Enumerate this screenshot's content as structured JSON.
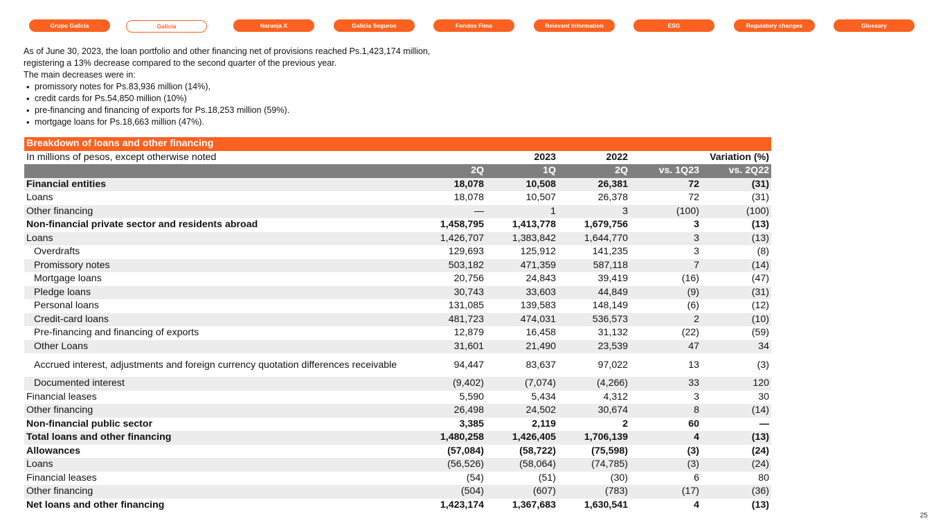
{
  "nav": {
    "items": [
      {
        "label": "Grupo Galicia"
      },
      {
        "label": "Galicia"
      },
      {
        "label": "Naranja X"
      },
      {
        "label": "Galicia Seguros"
      },
      {
        "label": "Fondos Fima"
      },
      {
        "label": "Relevant information"
      },
      {
        "label": "ESG"
      },
      {
        "label": "Regulatory changes"
      },
      {
        "label": "Glossary"
      }
    ],
    "active_index": 1
  },
  "intro": {
    "line1": "As of June 30, 2023, the loan portfolio and other financing net of provisions reached Ps.1,423,174 million,",
    "line2": "registering a 13% decrease compared to the second quarter of the previous year.",
    "line3": "The main decreases were in:",
    "bullets": [
      "promissory notes for Ps.83,936 million (14%),",
      "credit cards for Ps.54,850 million (10%)",
      "pre-financing and financing of exports for Ps.18,253 million (59%).",
      "mortgage loans for Ps.18,663 million (47%)."
    ]
  },
  "table": {
    "title": "Breakdown of loans and other financing",
    "units": "In millions of pesos, except otherwise noted",
    "year_2023": "2023",
    "year_2022": "2022",
    "variation": "Variation (%)",
    "cols": [
      "2Q",
      "1Q",
      "2Q",
      "vs. 1Q23",
      "vs. 2Q22"
    ],
    "rows": [
      {
        "label": "Financial entities",
        "v": [
          "18,078",
          "10,508",
          "26,381",
          "72",
          "(31)"
        ]
      },
      {
        "label": "Loans",
        "v": [
          "18,078",
          "10,507",
          "26,378",
          "72",
          "(31)"
        ]
      },
      {
        "label": "Other financing",
        "v": [
          "—",
          "1",
          "3",
          "(100)",
          "(100)"
        ]
      },
      {
        "label": "Non-financial private sector and residents abroad",
        "v": [
          "1,458,795",
          "1,413,778",
          "1,679,756",
          "3",
          "(13)"
        ]
      },
      {
        "label": "Loans",
        "v": [
          "1,426,707",
          "1,383,842",
          "1,644,770",
          "3",
          "(13)"
        ]
      },
      {
        "label": "Overdrafts",
        "v": [
          "129,693",
          "125,912",
          "141,235",
          "3",
          "(8)"
        ]
      },
      {
        "label": "Promissory notes",
        "v": [
          "503,182",
          "471,359",
          "587,118",
          "7",
          "(14)"
        ]
      },
      {
        "label": "Mortgage loans",
        "v": [
          "20,756",
          "24,843",
          "39,419",
          "(16)",
          "(47)"
        ]
      },
      {
        "label": "Pledge loans",
        "v": [
          "30,743",
          "33,603",
          "44,849",
          "(9)",
          "(31)"
        ]
      },
      {
        "label": "Personal loans",
        "v": [
          "131,085",
          "139,583",
          "148,149",
          "(6)",
          "(12)"
        ]
      },
      {
        "label": "Credit-card loans",
        "v": [
          "481,723",
          "474,031",
          "536,573",
          "2",
          "(10)"
        ]
      },
      {
        "label": "Pre-financing and financing of exports",
        "v": [
          "12,879",
          "16,458",
          "31,132",
          "(22)",
          "(59)"
        ]
      },
      {
        "label": "Other Loans",
        "v": [
          "31,601",
          "21,490",
          "23,539",
          "47",
          "34"
        ]
      },
      {
        "label": "Accrued interest, adjustments and foreign currency quotation differences receivable",
        "v": [
          "94,447",
          "83,637",
          "97,022",
          "13",
          "(3)"
        ]
      },
      {
        "label": "Documented interest",
        "v": [
          "(9,402)",
          "(7,074)",
          "(4,266)",
          "33",
          "120"
        ]
      },
      {
        "label": "Financial leases",
        "v": [
          "5,590",
          "5,434",
          "4,312",
          "3",
          "30"
        ]
      },
      {
        "label": "Other financing",
        "v": [
          "26,498",
          "24,502",
          "30,674",
          "8",
          "(14)"
        ]
      },
      {
        "label": "Non-financial public sector",
        "v": [
          "3,385",
          "2,119",
          "2",
          "60",
          "—"
        ]
      },
      {
        "label": "Total loans and other financing",
        "v": [
          "1,480,258",
          "1,426,405",
          "1,706,139",
          "4",
          "(13)"
        ]
      },
      {
        "label": "Allowances",
        "v": [
          "(57,084)",
          "(58,722)",
          "(75,598)",
          "(3)",
          "(24)"
        ]
      },
      {
        "label": "Loans",
        "v": [
          "(56,526)",
          "(58,064)",
          "(74,785)",
          "(3)",
          "(24)"
        ]
      },
      {
        "label": "Financial leases",
        "v": [
          "(54)",
          "(51)",
          "(30)",
          "6",
          "80"
        ]
      },
      {
        "label": "Other financing",
        "v": [
          "(504)",
          "(607)",
          "(783)",
          "(17)",
          "(36)"
        ]
      },
      {
        "label": "Net loans and other financing",
        "v": [
          "1,423,174",
          "1,367,683",
          "1,630,541",
          "4",
          "(13)"
        ]
      }
    ]
  },
  "page_number": "25",
  "colors": {
    "accent": "#fb6120",
    "subheader": "#7f7f7f",
    "row_shade": "#ececec"
  }
}
